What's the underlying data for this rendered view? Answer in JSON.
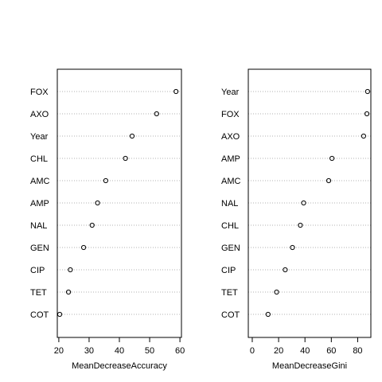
{
  "chart_data": [
    {
      "type": "scatter",
      "subtype": "dotchart",
      "title": "",
      "xlabel": "MeanDecreaseAccuracy",
      "ylabel": "",
      "xlim": [
        19.5,
        60.5
      ],
      "xticks": [
        20,
        30,
        40,
        50,
        60
      ],
      "grid": "dotted horizontal lines",
      "categories": [
        "FOX",
        "AXO",
        "Year",
        "CHL",
        "AMC",
        "AMP",
        "NAL",
        "GEN",
        "CIP",
        "TET",
        "COT"
      ],
      "values": [
        58.7,
        52.3,
        44.2,
        42.0,
        35.5,
        32.8,
        31.0,
        28.2,
        23.8,
        23.2,
        20.3
      ]
    },
    {
      "type": "scatter",
      "subtype": "dotchart",
      "title": "",
      "xlabel": "MeanDecreaseGini",
      "ylabel": "",
      "xlim": [
        -3,
        90
      ],
      "xticks": [
        0,
        20,
        40,
        60,
        80
      ],
      "grid": "dotted horizontal lines",
      "categories": [
        "Year",
        "FOX",
        "AXO",
        "AMP",
        "AMC",
        "NAL",
        "CHL",
        "GEN",
        "CIP",
        "TET",
        "COT"
      ],
      "values": [
        87.5,
        87.0,
        84.5,
        60.5,
        58.0,
        39.0,
        36.5,
        30.5,
        25.0,
        18.5,
        12.0
      ]
    }
  ]
}
